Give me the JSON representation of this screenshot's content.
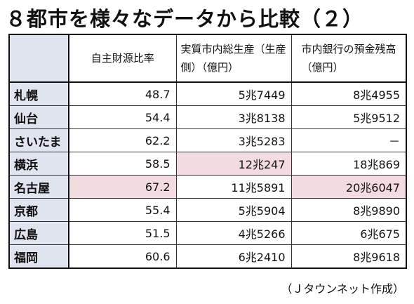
{
  "header": {
    "title": "８都市を様々なデータから比較（２）"
  },
  "table": {
    "columns": [
      "自主財源比率",
      "実質市内総生産（生産側）（億円）",
      "市内銀行の預金残高（億円）"
    ],
    "rows": [
      [
        "札幌",
        "48.7",
        "5兆7449",
        "8兆4955"
      ],
      [
        "仙台",
        "54.4",
        "3兆8138",
        "5兆9512"
      ],
      [
        "さいたま",
        "62.2",
        "3兆5283",
        "－"
      ],
      [
        "横浜",
        "58.5",
        "12兆247",
        "18兆869"
      ],
      [
        "名古屋",
        "67.2",
        "11兆5891",
        "20兆6047"
      ],
      [
        "京都",
        "55.4",
        "5兆5904",
        "8兆9890"
      ],
      [
        "広島",
        "51.5",
        "4兆5266",
        "6兆675"
      ],
      [
        "福岡",
        "60.6",
        "6兆2410",
        "8兆9618"
      ]
    ]
  },
  "footer": {
    "note": "（Ｊタウンネット作成）"
  }
}
